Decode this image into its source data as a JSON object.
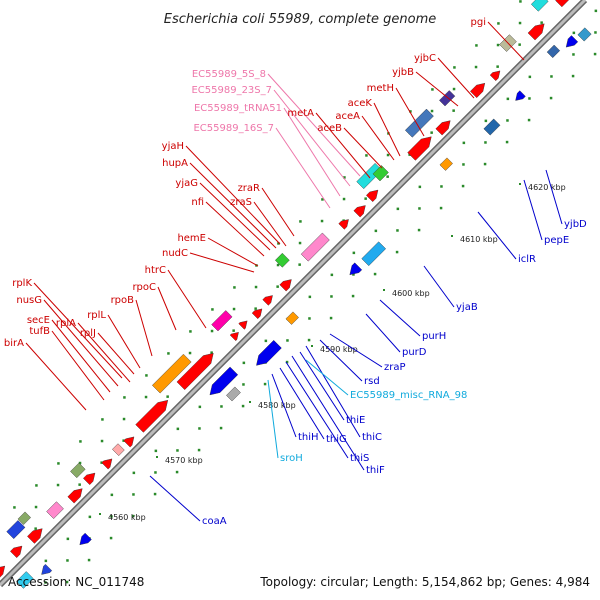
{
  "title": "Escherichia coli 55989, complete genome",
  "accession": "Accession: NC_011748",
  "summary": "Topology: circular; Length: 5,154,862 bp; Genes: 4,984",
  "ticks": [
    "4560 kbp",
    "4570 kbp",
    "4580 kbp",
    "4590 kbp",
    "4600 kbp",
    "4610 kbp",
    "4620 kbp"
  ],
  "colors": {
    "forward": "#ff0000",
    "reverse": "#0000ee",
    "rna": "#ff88cc",
    "misc_rna": "#22aadd",
    "backbone": "#999999"
  },
  "top_labels": [
    "birA",
    "tufB",
    "secE",
    "nusG",
    "rplK",
    "rplA",
    "rplJ",
    "rplL",
    "rpoB",
    "rpoC",
    "htrC",
    "nudC",
    "hemE",
    "nfi",
    "yjaG",
    "hupA",
    "yjaH",
    "zraS",
    "zraR",
    "EC55989_16S_7",
    "EC55989_tRNA51",
    "EC55989_23S_7",
    "EC55989_5S_8",
    "metA",
    "aceB",
    "aceA",
    "aceK",
    "metH",
    "yjbB",
    "yjbC",
    "pgi"
  ],
  "bottom_labels": [
    "coaA",
    "sroH",
    "thiH",
    "thiG",
    "thiS",
    "thiF",
    "thiE",
    "thiC",
    "EC55989_misc_RNA_98",
    "rsd",
    "zraP",
    "purD",
    "purH",
    "yjaB",
    "iclR",
    "pepE",
    "yjbD"
  ]
}
